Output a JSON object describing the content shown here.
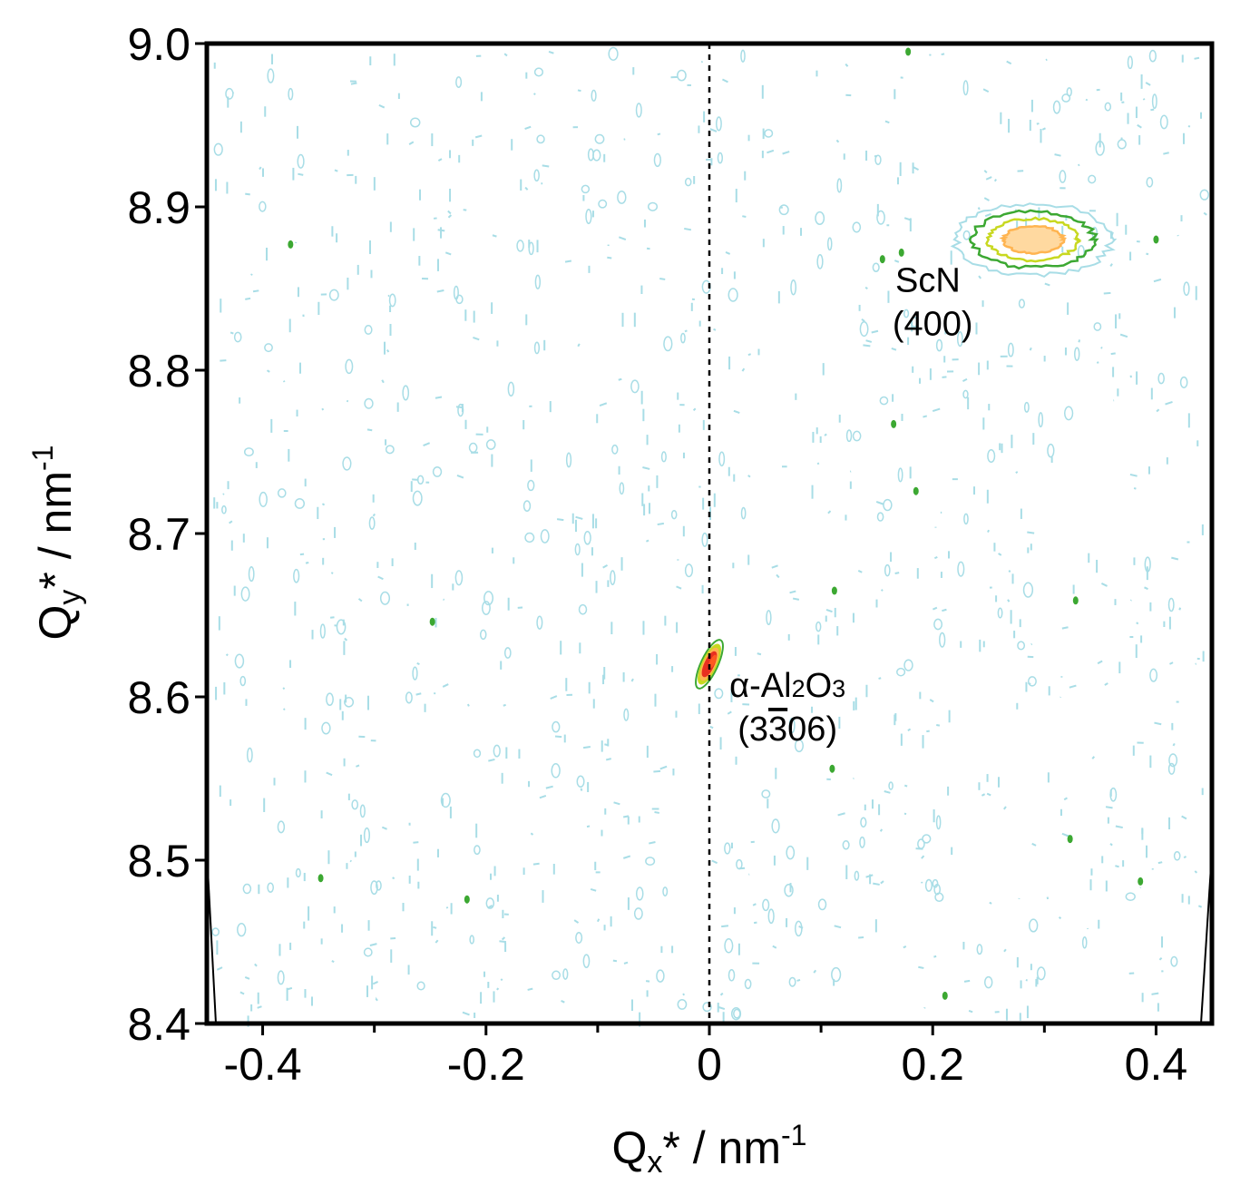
{
  "chart_data": {
    "type": "contour",
    "title": "",
    "xlabel": {
      "base": "Q",
      "sub": "x",
      "suffix": "* / nm",
      "sup": "-1"
    },
    "ylabel": {
      "base": "Q",
      "sub": "y",
      "suffix": "* / nm",
      "sup": "-1"
    },
    "xlim": [
      -0.45,
      0.45
    ],
    "ylim": [
      8.4,
      9.0
    ],
    "xticks": [
      {
        "value": -0.4,
        "label": "-0.4"
      },
      {
        "value": -0.2,
        "label": "-0.2"
      },
      {
        "value": 0,
        "label": "0"
      },
      {
        "value": 0.2,
        "label": "0.2"
      },
      {
        "value": 0.4,
        "label": "0.4"
      }
    ],
    "xminor": [
      -0.3,
      -0.1,
      0.1,
      0.3
    ],
    "yticks": [
      {
        "value": 8.4,
        "label": "8.4"
      },
      {
        "value": 8.5,
        "label": "8.5"
      },
      {
        "value": 8.6,
        "label": "8.6"
      },
      {
        "value": 8.7,
        "label": "8.7"
      },
      {
        "value": 8.8,
        "label": "8.8"
      },
      {
        "value": 8.9,
        "label": "8.9"
      },
      {
        "value": 9.0,
        "label": "9.0"
      }
    ],
    "reference_line": {
      "x": 0,
      "style": "dashed"
    },
    "contour_colors": [
      "#a8dde6",
      "#3ca832",
      "#c8d820",
      "#ffb450",
      "#e83020"
    ],
    "peaks": [
      {
        "name": "ScN (400)",
        "x": 0.29,
        "y": 8.88,
        "sx": 0.07,
        "sy": 0.022,
        "levels": 4
      },
      {
        "name": "α-Al2O3 (3-306)",
        "x": 0.0,
        "y": 8.62,
        "sx": 0.006,
        "sy": 0.013,
        "levels": 5
      }
    ],
    "isolated_points": [
      [
        -0.375,
        8.877
      ],
      [
        0.178,
        8.995
      ],
      [
        0.165,
        8.767
      ],
      [
        0.185,
        8.726
      ],
      [
        0.112,
        8.665
      ],
      [
        0.328,
        8.659
      ],
      [
        0.11,
        8.556
      ],
      [
        0.323,
        8.513
      ],
      [
        0.386,
        8.487
      ],
      [
        -0.348,
        8.489
      ],
      [
        -0.217,
        8.476
      ],
      [
        0.211,
        8.417
      ],
      [
        -0.248,
        8.646
      ],
      [
        0.172,
        8.872
      ],
      [
        0.155,
        8.868
      ],
      [
        0.4,
        8.88
      ]
    ],
    "annotations": [
      {
        "lines": [
          "ScN",
          "(400)"
        ],
        "x": 0.2,
        "y": 8.848
      },
      {
        "lines": [
          "α-Al",
          "2",
          "O",
          "3",
          "(3",
          "3",
          "06)"
        ],
        "x": 0.07,
        "y": 8.6
      }
    ]
  }
}
